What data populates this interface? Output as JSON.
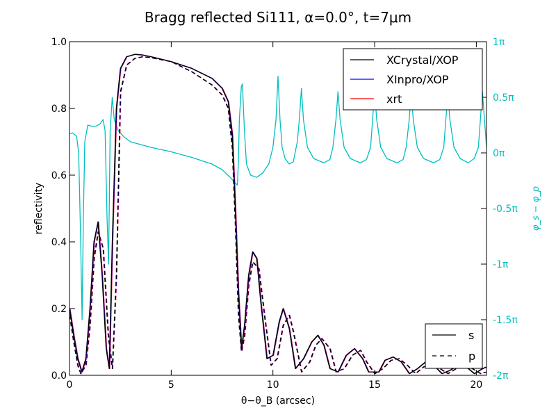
{
  "chart_data": {
    "type": "line",
    "title": "Bragg reflected Si111, α=0.0°, t=7μm",
    "xlabel": "θ−θ_B  (arcsec)",
    "ylabel": "reflectivity",
    "ylabel_right": "φ_s − φ_p",
    "xlim": [
      0,
      20.5
    ],
    "ylim": [
      0,
      1.0
    ],
    "ylim_right": [
      -2,
      1
    ],
    "x_ticks": [
      0,
      5,
      10,
      15,
      20
    ],
    "y_ticks": [
      0.0,
      0.2,
      0.4,
      0.6,
      0.8,
      1.0
    ],
    "y_ticks_right": [
      {
        "value": 1,
        "label": "1π"
      },
      {
        "value": 0.5,
        "label": "0.5π"
      },
      {
        "value": 0,
        "label": "0π"
      },
      {
        "value": -0.5,
        "label": "-0.5π"
      },
      {
        "value": -1,
        "label": "-1π"
      },
      {
        "value": -1.5,
        "label": "-1.5π"
      },
      {
        "value": -2,
        "label": "-2π"
      }
    ],
    "grid": false,
    "legend_models": {
      "placement": "top-right",
      "entries": [
        {
          "label": "XCrystal/XOP",
          "color": "#000000"
        },
        {
          "label": "XInpro/XOP",
          "color": "#0000ff"
        },
        {
          "label": "xrt",
          "color": "#ff0000"
        }
      ]
    },
    "legend_polarization": {
      "placement": "bottom-right",
      "entries": [
        {
          "label": "s",
          "style": "solid"
        },
        {
          "label": "p",
          "style": "dashed"
        }
      ]
    },
    "series": [
      {
        "name": "XCrystal/XOP s",
        "color": "#000000",
        "style": "solid",
        "axis": "left",
        "x": [
          0,
          0.2,
          0.4,
          0.6,
          0.8,
          1.0,
          1.2,
          1.4,
          1.6,
          1.8,
          1.95,
          2.1,
          2.3,
          2.5,
          2.8,
          3.2,
          3.6,
          4,
          5,
          6,
          7,
          7.5,
          7.8,
          8.0,
          8.15,
          8.3,
          8.45,
          8.6,
          8.8,
          9.0,
          9.2,
          9.4,
          9.7,
          10,
          10.3,
          10.5,
          10.8,
          11.1,
          11.5,
          11.9,
          12.2,
          12.5,
          12.8,
          13.2,
          13.6,
          14.0,
          14.4,
          14.7,
          15.2,
          15.5,
          15.9,
          16.3,
          16.7,
          17.1,
          17.5,
          17.9,
          18.3,
          18.7,
          19.1,
          19.5,
          19.9,
          20.3,
          20.5
        ],
        "y": [
          0.2,
          0.12,
          0.05,
          0.01,
          0.05,
          0.2,
          0.4,
          0.46,
          0.3,
          0.08,
          0.02,
          0.4,
          0.8,
          0.92,
          0.955,
          0.962,
          0.96,
          0.955,
          0.94,
          0.92,
          0.89,
          0.86,
          0.82,
          0.72,
          0.5,
          0.25,
          0.08,
          0.15,
          0.3,
          0.37,
          0.35,
          0.22,
          0.05,
          0.06,
          0.16,
          0.2,
          0.14,
          0.02,
          0.05,
          0.1,
          0.12,
          0.09,
          0.02,
          0.01,
          0.06,
          0.08,
          0.05,
          0.01,
          0.01,
          0.045,
          0.055,
          0.04,
          0.005,
          0.02,
          0.04,
          0.03,
          0.005,
          0.015,
          0.03,
          0.025,
          0.005,
          0.02,
          0.025
        ]
      },
      {
        "name": "XCrystal/XOP p",
        "color": "#000000",
        "style": "dashed",
        "axis": "left",
        "x": [
          0,
          0.2,
          0.4,
          0.55,
          0.8,
          1.0,
          1.2,
          1.4,
          1.65,
          1.9,
          2.1,
          2.3,
          2.5,
          2.8,
          3.2,
          3.6,
          4,
          5,
          6,
          7,
          7.5,
          7.8,
          8.0,
          8.15,
          8.3,
          8.45,
          8.6,
          8.8,
          9.0,
          9.3,
          9.6,
          9.9,
          10.2,
          10.5,
          10.8,
          11.0,
          11.4,
          11.8,
          12.1,
          12.4,
          12.8,
          13.1,
          13.5,
          13.9,
          14.3,
          14.6,
          15.0,
          15.4,
          15.8,
          16.2,
          16.6,
          17.0,
          17.4,
          17.8,
          18.2,
          18.6,
          19.0,
          19.4,
          19.8,
          20.2,
          20.5
        ],
        "y": [
          0.18,
          0.1,
          0.03,
          0.005,
          0.03,
          0.15,
          0.35,
          0.43,
          0.38,
          0.12,
          0.02,
          0.3,
          0.85,
          0.93,
          0.95,
          0.955,
          0.952,
          0.94,
          0.91,
          0.87,
          0.84,
          0.8,
          0.68,
          0.45,
          0.18,
          0.07,
          0.12,
          0.27,
          0.34,
          0.32,
          0.17,
          0.03,
          0.05,
          0.15,
          0.18,
          0.13,
          0.01,
          0.04,
          0.09,
          0.11,
          0.08,
          0.01,
          0.02,
          0.06,
          0.075,
          0.04,
          0.005,
          0.02,
          0.045,
          0.05,
          0.03,
          0.005,
          0.025,
          0.035,
          0.02,
          0.005,
          0.02,
          0.03,
          0.02,
          0.005,
          0.01
        ]
      },
      {
        "name": "phase φs−φp",
        "color": "#00bfbf",
        "style": "solid",
        "axis": "right",
        "x": [
          0,
          0.15,
          0.35,
          0.45,
          0.55,
          0.62,
          0.68,
          0.75,
          0.9,
          1.1,
          1.3,
          1.5,
          1.65,
          1.75,
          1.85,
          1.92,
          2.0,
          2.1,
          2.2,
          2.4,
          2.7,
          3,
          4,
          5,
          6,
          7,
          7.5,
          7.9,
          8.1,
          8.25,
          8.3,
          8.35,
          8.45,
          8.5,
          8.6,
          8.7,
          8.9,
          9.2,
          9.5,
          9.8,
          10.0,
          10.15,
          10.25,
          10.35,
          10.45,
          10.6,
          10.8,
          11.0,
          11.2,
          11.3,
          11.4,
          11.5,
          11.7,
          12.0,
          12.5,
          12.8,
          12.95,
          13.1,
          13.2,
          13.3,
          13.5,
          13.8,
          14.3,
          14.6,
          14.8,
          14.9,
          15.0,
          15.1,
          15.3,
          15.6,
          16.1,
          16.4,
          16.55,
          16.7,
          16.8,
          16.9,
          17.1,
          17.4,
          17.9,
          18.2,
          18.4,
          18.5,
          18.6,
          18.7,
          18.9,
          19.2,
          19.6,
          19.9,
          20.1,
          20.2,
          20.3,
          20.4,
          20.5
        ],
        "y": [
          0.17,
          0.18,
          0.15,
          0,
          -0.8,
          -1.5,
          -0.6,
          0.1,
          0.25,
          0.24,
          0.24,
          0.26,
          0.3,
          0.2,
          -0.6,
          -1.0,
          0.2,
          0.5,
          0.3,
          0.2,
          0.14,
          0.1,
          0.05,
          0.01,
          -0.04,
          -0.1,
          -0.15,
          -0.22,
          -0.26,
          -0.29,
          -0.1,
          0.3,
          0.6,
          0.62,
          0.2,
          -0.1,
          -0.2,
          -0.22,
          -0.18,
          -0.1,
          0.05,
          0.3,
          0.69,
          0.3,
          0.05,
          -0.05,
          -0.1,
          -0.08,
          0.1,
          0.3,
          0.58,
          0.3,
          0.05,
          -0.05,
          -0.09,
          -0.06,
          0.05,
          0.3,
          0.55,
          0.3,
          0.05,
          -0.05,
          -0.09,
          -0.06,
          0.05,
          0.3,
          0.55,
          0.3,
          0.05,
          -0.05,
          -0.09,
          -0.06,
          0.05,
          0.3,
          0.55,
          0.3,
          0.05,
          -0.05,
          -0.09,
          -0.06,
          0.05,
          0.3,
          0.55,
          0.3,
          0.05,
          -0.05,
          -0.09,
          -0.05,
          0.05,
          0.3,
          0.55,
          0.3,
          0.05
        ]
      }
    ]
  }
}
